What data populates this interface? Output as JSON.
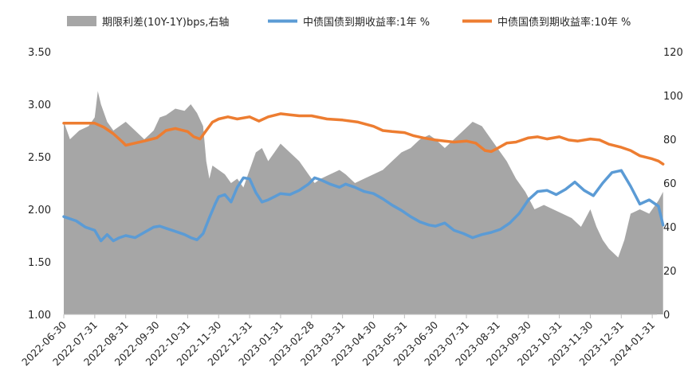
{
  "chart_data": {
    "type": "area+line",
    "legend": [
      {
        "key": "spread",
        "label": "期限利差(10Y-1Y)bps,右轴",
        "color": "#a6a6a6",
        "kind": "area"
      },
      {
        "key": "y1",
        "label": "中债国债到期收益率:1年 %",
        "color": "#5b9bd5",
        "kind": "line"
      },
      {
        "key": "y10",
        "label": "中债国债到期收益率:10年 %",
        "color": "#ed7d31",
        "kind": "line"
      }
    ],
    "left_axis": {
      "min": 1.0,
      "max": 3.5,
      "ticks": [
        "1.00",
        "1.50",
        "2.00",
        "2.50",
        "3.00",
        "3.50"
      ]
    },
    "right_axis": {
      "min": 0,
      "max": 120,
      "ticks": [
        "0",
        "20",
        "40",
        "60",
        "80",
        "100",
        "120"
      ]
    },
    "x_labels": [
      "2022-06-30",
      "2022-07-31",
      "2022-08-31",
      "2022-09-30",
      "2022-10-31",
      "2022-11-30",
      "2022-12-31",
      "2023-01-31",
      "2023-02-28",
      "2023-03-31",
      "2023-04-30",
      "2023-05-31",
      "2023-06-30",
      "2023-07-31",
      "2023-08-31",
      "2023-09-30",
      "2023-10-31",
      "2023-11-30",
      "2023-12-31",
      "2024-01-31"
    ],
    "y10": [
      [
        0,
        2.82
      ],
      [
        1,
        2.82
      ],
      [
        1.3,
        2.78
      ],
      [
        1.6,
        2.72
      ],
      [
        1.9,
        2.64
      ],
      [
        2,
        2.61
      ],
      [
        2.3,
        2.63
      ],
      [
        2.6,
        2.65
      ],
      [
        3,
        2.68
      ],
      [
        3.3,
        2.75
      ],
      [
        3.6,
        2.77
      ],
      [
        4,
        2.74
      ],
      [
        4.2,
        2.69
      ],
      [
        4.4,
        2.67
      ],
      [
        4.6,
        2.75
      ],
      [
        4.8,
        2.83
      ],
      [
        5,
        2.86
      ],
      [
        5.3,
        2.88
      ],
      [
        5.6,
        2.86
      ],
      [
        6,
        2.88
      ],
      [
        6.3,
        2.84
      ],
      [
        6.6,
        2.88
      ],
      [
        7,
        2.91
      ],
      [
        7.3,
        2.9
      ],
      [
        7.6,
        2.89
      ],
      [
        8,
        2.89
      ],
      [
        8.5,
        2.86
      ],
      [
        9,
        2.85
      ],
      [
        9.5,
        2.83
      ],
      [
        10,
        2.79
      ],
      [
        10.3,
        2.75
      ],
      [
        10.6,
        2.74
      ],
      [
        11,
        2.73
      ],
      [
        11.3,
        2.7
      ],
      [
        11.6,
        2.68
      ],
      [
        12,
        2.66
      ],
      [
        12.3,
        2.65
      ],
      [
        12.6,
        2.64
      ],
      [
        13,
        2.65
      ],
      [
        13.3,
        2.63
      ],
      [
        13.6,
        2.56
      ],
      [
        13.8,
        2.55
      ],
      [
        14,
        2.58
      ],
      [
        14.3,
        2.63
      ],
      [
        14.6,
        2.64
      ],
      [
        15,
        2.68
      ],
      [
        15.3,
        2.69
      ],
      [
        15.6,
        2.67
      ],
      [
        16,
        2.69
      ],
      [
        16.3,
        2.66
      ],
      [
        16.6,
        2.65
      ],
      [
        17,
        2.67
      ],
      [
        17.3,
        2.66
      ],
      [
        17.6,
        2.62
      ],
      [
        18,
        2.59
      ],
      [
        18.3,
        2.56
      ],
      [
        18.6,
        2.51
      ],
      [
        19,
        2.48
      ],
      [
        19.2,
        2.46
      ],
      [
        19.35,
        2.43
      ]
    ],
    "y1": [
      [
        0,
        1.93
      ],
      [
        0.4,
        1.89
      ],
      [
        0.7,
        1.83
      ],
      [
        1,
        1.8
      ],
      [
        1.2,
        1.7
      ],
      [
        1.4,
        1.76
      ],
      [
        1.6,
        1.7
      ],
      [
        1.8,
        1.73
      ],
      [
        2,
        1.75
      ],
      [
        2.3,
        1.73
      ],
      [
        2.6,
        1.78
      ],
      [
        2.9,
        1.83
      ],
      [
        3.1,
        1.84
      ],
      [
        3.3,
        1.82
      ],
      [
        3.6,
        1.79
      ],
      [
        3.9,
        1.76
      ],
      [
        4.1,
        1.73
      ],
      [
        4.3,
        1.71
      ],
      [
        4.5,
        1.77
      ],
      [
        4.7,
        1.92
      ],
      [
        4.9,
        2.06
      ],
      [
        5,
        2.12
      ],
      [
        5.2,
        2.14
      ],
      [
        5.4,
        2.07
      ],
      [
        5.6,
        2.21
      ],
      [
        5.8,
        2.3
      ],
      [
        6,
        2.29
      ],
      [
        6.2,
        2.16
      ],
      [
        6.4,
        2.07
      ],
      [
        6.6,
        2.09
      ],
      [
        6.8,
        2.12
      ],
      [
        7,
        2.15
      ],
      [
        7.3,
        2.14
      ],
      [
        7.6,
        2.18
      ],
      [
        7.9,
        2.24
      ],
      [
        8.1,
        2.3
      ],
      [
        8.3,
        2.28
      ],
      [
        8.6,
        2.24
      ],
      [
        8.9,
        2.21
      ],
      [
        9.1,
        2.24
      ],
      [
        9.4,
        2.21
      ],
      [
        9.7,
        2.17
      ],
      [
        10,
        2.15
      ],
      [
        10.3,
        2.1
      ],
      [
        10.6,
        2.04
      ],
      [
        10.9,
        1.99
      ],
      [
        11.2,
        1.93
      ],
      [
        11.5,
        1.88
      ],
      [
        11.8,
        1.85
      ],
      [
        12,
        1.84
      ],
      [
        12.3,
        1.87
      ],
      [
        12.6,
        1.8
      ],
      [
        12.9,
        1.77
      ],
      [
        13.2,
        1.73
      ],
      [
        13.5,
        1.76
      ],
      [
        13.8,
        1.78
      ],
      [
        14.1,
        1.81
      ],
      [
        14.4,
        1.87
      ],
      [
        14.7,
        1.96
      ],
      [
        15,
        2.09
      ],
      [
        15.3,
        2.17
      ],
      [
        15.6,
        2.18
      ],
      [
        15.9,
        2.14
      ],
      [
        16.2,
        2.19
      ],
      [
        16.5,
        2.26
      ],
      [
        16.8,
        2.18
      ],
      [
        17.1,
        2.13
      ],
      [
        17.4,
        2.25
      ],
      [
        17.7,
        2.35
      ],
      [
        18,
        2.37
      ],
      [
        18.3,
        2.22
      ],
      [
        18.6,
        2.05
      ],
      [
        18.9,
        2.09
      ],
      [
        19.2,
        2.03
      ],
      [
        19.35,
        1.85
      ]
    ],
    "spread": [
      [
        0,
        88
      ],
      [
        0.2,
        80
      ],
      [
        0.5,
        84
      ],
      [
        0.8,
        86
      ],
      [
        1,
        90
      ],
      [
        1.1,
        102
      ],
      [
        1.2,
        96
      ],
      [
        1.4,
        88
      ],
      [
        1.6,
        84
      ],
      [
        1.8,
        86
      ],
      [
        2,
        88
      ],
      [
        2.3,
        84
      ],
      [
        2.6,
        80
      ],
      [
        2.9,
        84
      ],
      [
        3.1,
        90
      ],
      [
        3.3,
        91
      ],
      [
        3.6,
        94
      ],
      [
        3.9,
        93
      ],
      [
        4.1,
        96
      ],
      [
        4.3,
        92
      ],
      [
        4.5,
        86
      ],
      [
        4.6,
        70
      ],
      [
        4.7,
        62
      ],
      [
        4.8,
        68
      ],
      [
        5,
        66
      ],
      [
        5.2,
        64
      ],
      [
        5.4,
        60
      ],
      [
        5.6,
        62
      ],
      [
        5.8,
        58
      ],
      [
        6,
        66
      ],
      [
        6.2,
        74
      ],
      [
        6.4,
        76
      ],
      [
        6.6,
        70
      ],
      [
        6.8,
        74
      ],
      [
        7,
        78
      ],
      [
        7.3,
        74
      ],
      [
        7.6,
        70
      ],
      [
        7.9,
        64
      ],
      [
        8.1,
        60
      ],
      [
        8.3,
        62
      ],
      [
        8.6,
        64
      ],
      [
        8.9,
        66
      ],
      [
        9.1,
        64
      ],
      [
        9.4,
        60
      ],
      [
        9.7,
        62
      ],
      [
        10,
        64
      ],
      [
        10.3,
        66
      ],
      [
        10.6,
        70
      ],
      [
        10.9,
        74
      ],
      [
        11.2,
        76
      ],
      [
        11.5,
        80
      ],
      [
        11.8,
        82
      ],
      [
        12,
        80
      ],
      [
        12.3,
        76
      ],
      [
        12.6,
        80
      ],
      [
        12.9,
        84
      ],
      [
        13.2,
        88
      ],
      [
        13.5,
        86
      ],
      [
        13.8,
        80
      ],
      [
        14,
        76
      ],
      [
        14.3,
        70
      ],
      [
        14.6,
        62
      ],
      [
        14.9,
        56
      ],
      [
        15.2,
        48
      ],
      [
        15.5,
        50
      ],
      [
        15.8,
        48
      ],
      [
        16.1,
        46
      ],
      [
        16.4,
        44
      ],
      [
        16.7,
        40
      ],
      [
        17,
        48
      ],
      [
        17.2,
        40
      ],
      [
        17.4,
        34
      ],
      [
        17.6,
        30
      ],
      [
        17.9,
        26
      ],
      [
        18.1,
        34
      ],
      [
        18.3,
        46
      ],
      [
        18.6,
        48
      ],
      [
        18.9,
        46
      ],
      [
        19.2,
        52
      ],
      [
        19.35,
        56
      ]
    ]
  }
}
